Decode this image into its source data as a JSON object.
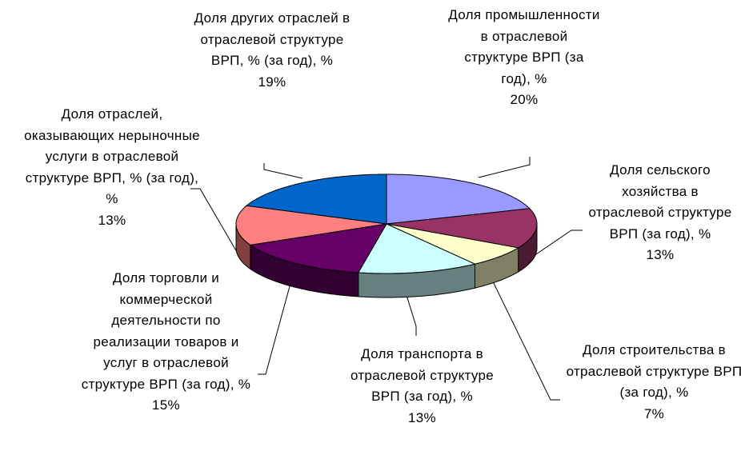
{
  "chart_data": {
    "type": "pie3d",
    "categories": [
      "Доля промышленности в отраслевой структуре ВРП (за год), %",
      "Доля сельского хозяйства в отраслевой структуре ВРП (за год), %",
      "Доля строительства в отраслевой структуре ВРП (за год), %",
      "Доля транспорта в отраслевой структуре ВРП (за год), %",
      "Доля торговли и коммерческой деятельности по реализации товаров и услуг в отраслевой структуре ВРП (за год), %",
      "Доля отраслей, оказывающих нерыночные услуги в отраслевой структуре ВРП, % (за год), %",
      "Доля других отраслей в отраслевой структуре ВРП, % (за год), %"
    ],
    "values": [
      20,
      13,
      7,
      13,
      15,
      13,
      19
    ],
    "value_labels": [
      "20%",
      "13%",
      "7%",
      "13%",
      "15%",
      "13%",
      "19%"
    ],
    "colors": [
      "#9999ff",
      "#993366",
      "#ffffcc",
      "#ccffff",
      "#660066",
      "#ff8080",
      "#0066cc"
    ]
  }
}
